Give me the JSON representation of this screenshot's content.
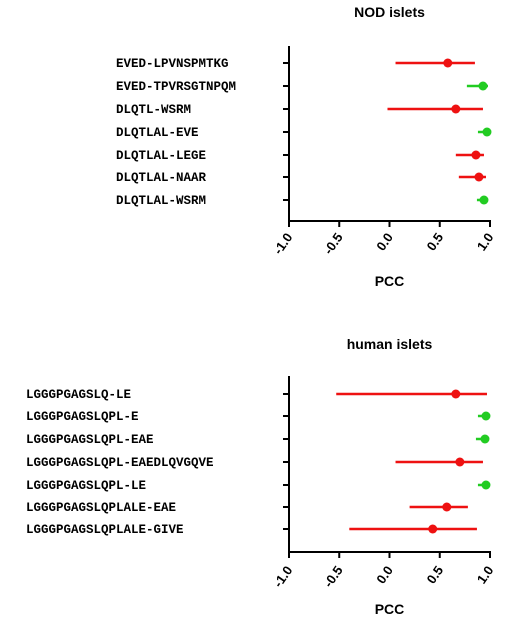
{
  "chart_data": [
    {
      "type": "forest",
      "title": "NOD islets",
      "xlabel": "PCC",
      "xlim": [
        -1.0,
        1.0
      ],
      "ticks": [
        "-1.0",
        "-0.5",
        "0.0",
        "0.5",
        "1.0"
      ],
      "tick_values": [
        -1.0,
        -0.5,
        0.0,
        0.5,
        1.0
      ],
      "colors": {
        "red": "#ee1111",
        "green": "#22cc22"
      },
      "rows": [
        {
          "label": "EVED-LPVNSPMTKG",
          "value": 0.58,
          "low": 0.06,
          "high": 0.85,
          "color": "red"
        },
        {
          "label": "EVED-TPVRSGTNPQM",
          "value": 0.93,
          "low": 0.77,
          "high": 0.98,
          "color": "green"
        },
        {
          "label": "DLQTL-WSRM",
          "value": 0.66,
          "low": -0.02,
          "high": 0.93,
          "color": "red"
        },
        {
          "label": "DLQTLAL-EVE",
          "value": 0.97,
          "low": 0.88,
          "high": 0.99,
          "color": "green"
        },
        {
          "label": "DLQTLAL-LEGE",
          "value": 0.86,
          "low": 0.66,
          "high": 0.94,
          "color": "red"
        },
        {
          "label": "DLQTLAL-NAAR",
          "value": 0.89,
          "low": 0.69,
          "high": 0.96,
          "color": "red"
        },
        {
          "label": "DLQTLAL-WSRM",
          "value": 0.94,
          "low": 0.87,
          "high": 0.98,
          "color": "green"
        }
      ]
    },
    {
      "type": "forest",
      "title": "human islets",
      "xlabel": "PCC",
      "xlim": [
        -1.0,
        1.0
      ],
      "ticks": [
        "-1.0",
        "-0.5",
        "0.0",
        "0.5",
        "1.0"
      ],
      "tick_values": [
        -1.0,
        -0.5,
        0.0,
        0.5,
        1.0
      ],
      "colors": {
        "red": "#ee1111",
        "green": "#22cc22"
      },
      "rows": [
        {
          "label": "LGGGPGAGSLQ-LE",
          "value": 0.66,
          "low": -0.53,
          "high": 0.97,
          "color": "red"
        },
        {
          "label": "LGGGPGAGSLQPL-E",
          "value": 0.96,
          "low": 0.88,
          "high": 0.99,
          "color": "green"
        },
        {
          "label": "LGGGPGAGSLQPL-EAE",
          "value": 0.95,
          "low": 0.86,
          "high": 0.98,
          "color": "green"
        },
        {
          "label": "LGGGPGAGSLQPL-EAEDLQVGQVE",
          "value": 0.7,
          "low": 0.06,
          "high": 0.93,
          "color": "red"
        },
        {
          "label": "LGGGPGAGSLQPL-LE",
          "value": 0.96,
          "low": 0.88,
          "high": 0.99,
          "color": "green"
        },
        {
          "label": "LGGGPGAGSLQPLALE-EAE",
          "value": 0.57,
          "low": 0.2,
          "high": 0.78,
          "color": "red"
        },
        {
          "label": "LGGGPGAGSLQPLALE-GIVE",
          "value": 0.43,
          "low": -0.4,
          "high": 0.87,
          "color": "red"
        }
      ]
    }
  ]
}
